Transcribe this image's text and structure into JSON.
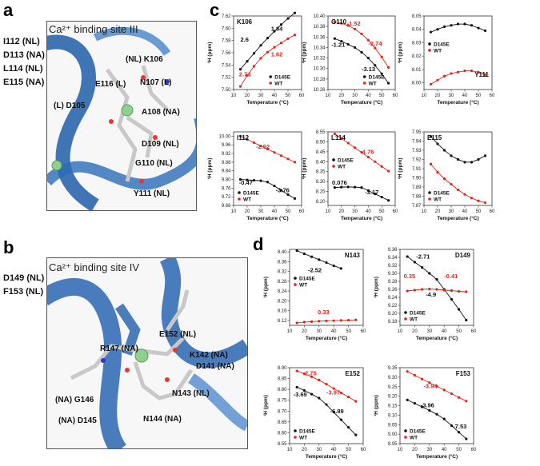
{
  "panels": {
    "a": "a",
    "b": "b",
    "c": "c",
    "d": "d"
  },
  "structures": {
    "site3": {
      "title": "Ca²⁺ binding site III",
      "side_list": [
        "I112 (NL)",
        "D113 (NA)",
        "L114 (NL)",
        "E115 (NA)"
      ],
      "residues": [
        "(NL) K106",
        "E116 (L)",
        "N107 (L)",
        "(L) D105",
        "A108 (NA)",
        "D109 (NL)",
        "G110 (NL)",
        "Y111 (NL)"
      ]
    },
    "site4": {
      "title": "Ca²⁺ binding site IV",
      "side_list": [
        "D149 (NL)",
        "F153 (NL)"
      ],
      "residues": [
        "E152 (NL)",
        "R147 (NA)",
        "K142 (NA)",
        "D141 (NA)",
        "N143 (NL)",
        "(NA) G146",
        "(NA) D145",
        "N144 (NA)"
      ]
    }
  },
  "common": {
    "xlabel": "Temperature (°C)",
    "ylabel": "¹H (ppm)",
    "legend": [
      "D145E",
      "WT"
    ],
    "colors": {
      "D145E": "#111111",
      "WT": "#e0241b"
    }
  },
  "chart_data": [
    {
      "type": "scatter",
      "title": "K106",
      "xlim": [
        10,
        60
      ],
      "ylim": [
        7.5,
        7.62
      ],
      "yticks": [
        7.5,
        7.52,
        7.54,
        7.56,
        7.58,
        7.6,
        7.62
      ],
      "series": [
        {
          "name": "D145E",
          "x": [
            15,
            20,
            25,
            30,
            35,
            40,
            45,
            50,
            55
          ],
          "y": [
            7.533,
            7.546,
            7.559,
            7.572,
            7.584,
            7.595,
            7.606,
            7.616,
            7.625
          ]
        },
        {
          "name": "WT",
          "x": [
            15,
            20,
            25,
            30,
            35,
            40,
            45,
            50,
            55
          ],
          "y": [
            7.505,
            7.523,
            7.538,
            7.551,
            7.561,
            7.569,
            7.576,
            7.583,
            7.589
          ]
        }
      ],
      "annotations": [
        {
          "text": "2.6",
          "series": "D145E"
        },
        {
          "text": "1.84",
          "series": "D145E"
        },
        {
          "text": "2.74",
          "series": "WT"
        },
        {
          "text": "1.62",
          "series": "WT"
        }
      ],
      "legend_pos": "bottom-right"
    },
    {
      "type": "scatter",
      "title": "G110",
      "xlim": [
        10,
        60
      ],
      "ylim": [
        10.26,
        10.4
      ],
      "yticks": [
        10.26,
        10.28,
        10.3,
        10.32,
        10.34,
        10.36,
        10.38,
        10.4
      ],
      "series": [
        {
          "name": "D145E",
          "x": [
            15,
            20,
            25,
            30,
            35,
            40,
            45,
            50,
            55
          ],
          "y": [
            10.357,
            10.352,
            10.346,
            10.34,
            10.331,
            10.32,
            10.306,
            10.29,
            10.272
          ]
        },
        {
          "name": "WT",
          "x": [
            15,
            20,
            25,
            30,
            35,
            40,
            45,
            50,
            55
          ],
          "y": [
            10.389,
            10.386,
            10.382,
            10.375,
            10.366,
            10.354,
            10.339,
            10.322,
            10.302
          ]
        }
      ],
      "annotations": [
        {
          "text": "-1.52",
          "series": "WT"
        },
        {
          "text": "-2.74",
          "series": "WT"
        },
        {
          "text": "-1.21",
          "series": "D145E"
        },
        {
          "text": "-3.13",
          "series": "D145E"
        }
      ],
      "legend_pos": "bottom-right"
    },
    {
      "type": "scatter",
      "title": "Y111",
      "xlim": [
        10,
        60
      ],
      "ylim": [
        7.995,
        8.05
      ],
      "yticks": [
        8.0,
        8.01,
        8.02,
        8.03,
        8.04,
        8.05
      ],
      "series": [
        {
          "name": "D145E",
          "x": [
            15,
            20,
            25,
            30,
            35,
            40,
            45,
            50,
            55
          ],
          "y": [
            8.038,
            8.04,
            8.042,
            8.043,
            8.044,
            8.044,
            8.043,
            8.041,
            8.039
          ]
        },
        {
          "name": "WT",
          "x": [
            15,
            20,
            25,
            30,
            35,
            40,
            45,
            50,
            55
          ],
          "y": [
            7.999,
            8.002,
            8.005,
            8.007,
            8.008,
            8.009,
            8.009,
            8.008,
            8.006
          ]
        }
      ],
      "annotations": [],
      "legend_pos": "center-left"
    },
    {
      "type": "scatter",
      "title": "I112",
      "xlim": [
        10,
        60
      ],
      "ylim": [
        9.68,
        10.02
      ],
      "yticks": [
        9.68,
        9.72,
        9.76,
        9.8,
        9.84,
        9.88,
        9.92,
        9.96,
        10.0
      ],
      "series": [
        {
          "name": "D145E",
          "x": [
            15,
            20,
            25,
            30,
            35,
            40,
            45,
            50,
            55
          ],
          "y": [
            9.8,
            9.798,
            9.796,
            9.794,
            9.788,
            9.77,
            9.75,
            9.73,
            9.712
          ]
        },
        {
          "name": "WT",
          "x": [
            15,
            20,
            25,
            30,
            35,
            40,
            45,
            50,
            55
          ],
          "y": [
            10.0,
            9.985,
            9.97,
            9.955,
            9.94,
            9.925,
            9.91,
            9.895,
            9.88
          ]
        }
      ],
      "annotations": [
        {
          "text": "-2.92",
          "series": "WT"
        },
        {
          "text": "-0.47",
          "series": "D145E"
        },
        {
          "text": "-3.76",
          "series": "D145E"
        }
      ],
      "legend_pos": "bottom-left"
    },
    {
      "type": "scatter",
      "title": "L114",
      "xlim": [
        10,
        60
      ],
      "ylim": [
        8.18,
        8.55
      ],
      "yticks": [
        8.2,
        8.25,
        8.3,
        8.35,
        8.4,
        8.45,
        8.5,
        8.55
      ],
      "series": [
        {
          "name": "D145E",
          "x": [
            15,
            20,
            25,
            30,
            35,
            40,
            45,
            50,
            55
          ],
          "y": [
            8.27,
            8.272,
            8.273,
            8.272,
            8.27,
            8.255,
            8.238,
            8.222,
            8.205
          ]
        },
        {
          "name": "WT",
          "x": [
            15,
            20,
            25,
            30,
            35,
            40,
            45,
            50,
            55
          ],
          "y": [
            8.54,
            8.517,
            8.494,
            8.47,
            8.447,
            8.423,
            8.4,
            8.376,
            8.353
          ]
        }
      ],
      "annotations": [
        {
          "text": "-4.76",
          "series": "WT"
        },
        {
          "text": "0.076",
          "series": "D145E"
        },
        {
          "text": "-3.17",
          "series": "D145E"
        }
      ],
      "legend_pos": "center-left"
    },
    {
      "type": "scatter",
      "title": "E115",
      "xlim": [
        10,
        60
      ],
      "ylim": [
        7.87,
        7.95
      ],
      "yticks": [
        7.87,
        7.88,
        7.89,
        7.9,
        7.91,
        7.92,
        7.93,
        7.94,
        7.95
      ],
      "series": [
        {
          "name": "D145E",
          "x": [
            15,
            20,
            25,
            30,
            35,
            40,
            45,
            50,
            55
          ],
          "y": [
            7.945,
            7.937,
            7.93,
            7.924,
            7.92,
            7.917,
            7.917,
            7.92,
            7.924
          ]
        },
        {
          "name": "WT",
          "x": [
            15,
            20,
            25,
            30,
            35,
            40,
            45,
            50,
            55
          ],
          "y": [
            7.915,
            7.906,
            7.899,
            7.893,
            7.887,
            7.882,
            7.878,
            7.875,
            7.873
          ]
        }
      ],
      "annotations": [],
      "legend_pos": "bottom-left"
    },
    {
      "type": "scatter",
      "title": "N143",
      "xlim": [
        10,
        60
      ],
      "ylim": [
        8.1,
        8.41
      ],
      "yticks": [
        8.12,
        8.16,
        8.2,
        8.24,
        8.28,
        8.32,
        8.36,
        8.4
      ],
      "series": [
        {
          "name": "D145E",
          "x": [
            15,
            20,
            25,
            30,
            35,
            40,
            45
          ],
          "y": [
            8.405,
            8.392,
            8.38,
            8.368,
            8.356,
            8.343,
            8.332
          ]
        },
        {
          "name": "WT",
          "x": [
            15,
            20,
            25,
            30,
            35,
            40,
            45,
            50,
            55
          ],
          "y": [
            8.11,
            8.113,
            8.115,
            8.117,
            8.118,
            8.119,
            8.12,
            8.121,
            8.122
          ]
        }
      ],
      "annotations": [
        {
          "text": "-2.52",
          "series": "D145E"
        },
        {
          "text": "0.33",
          "series": "WT"
        }
      ],
      "legend_pos": "center-left"
    },
    {
      "type": "scatter",
      "title": "D149",
      "xlim": [
        10,
        60
      ],
      "ylim": [
        9.17,
        9.36
      ],
      "yticks": [
        9.18,
        9.2,
        9.22,
        9.24,
        9.26,
        9.28,
        9.3,
        9.32,
        9.34,
        9.36
      ],
      "series": [
        {
          "name": "D145E",
          "x": [
            15,
            20,
            25,
            30,
            35,
            40,
            45,
            50,
            55
          ],
          "y": [
            9.342,
            9.328,
            9.315,
            9.3,
            9.285,
            9.26,
            9.235,
            9.21,
            9.183
          ]
        },
        {
          "name": "WT",
          "x": [
            15,
            20,
            25,
            30,
            35,
            40,
            45,
            50,
            55
          ],
          "y": [
            9.256,
            9.258,
            9.26,
            9.261,
            9.26,
            9.258,
            9.257,
            9.255,
            9.254
          ]
        }
      ],
      "annotations": [
        {
          "text": "-2.71",
          "series": "D145E"
        },
        {
          "text": "0.35",
          "series": "WT"
        },
        {
          "text": "-0.41",
          "series": "WT"
        },
        {
          "text": "-4.9",
          "series": "D145E"
        }
      ],
      "legend_pos": "bottom-left"
    },
    {
      "type": "scatter",
      "title": "E152",
      "xlim": [
        10,
        60
      ],
      "ylim": [
        8.55,
        8.9
      ],
      "yticks": [
        8.55,
        8.6,
        8.65,
        8.7,
        8.75,
        8.8,
        8.85,
        8.9
      ],
      "series": [
        {
          "name": "D145E",
          "x": [
            15,
            20,
            25,
            30,
            35,
            40,
            45,
            50,
            55
          ],
          "y": [
            8.81,
            8.795,
            8.778,
            8.76,
            8.73,
            8.695,
            8.66,
            8.625,
            8.59
          ]
        },
        {
          "name": "WT",
          "x": [
            15,
            20,
            25,
            30,
            35,
            40,
            45,
            50,
            55
          ],
          "y": [
            8.885,
            8.872,
            8.858,
            8.843,
            8.824,
            8.804,
            8.784,
            8.765,
            8.745
          ]
        }
      ],
      "annotations": [
        {
          "text": "-2.75",
          "series": "WT"
        },
        {
          "text": "-3.97",
          "series": "WT"
        },
        {
          "text": "-3.69",
          "series": "D145E"
        },
        {
          "text": "-6.89",
          "series": "D145E"
        }
      ],
      "legend_pos": "bottom-left"
    },
    {
      "type": "scatter",
      "title": "F153",
      "xlim": [
        10,
        60
      ],
      "ylim": [
        8.95,
        9.35
      ],
      "yticks": [
        8.95,
        9.0,
        9.05,
        9.1,
        9.15,
        9.2,
        9.25,
        9.3,
        9.35
      ],
      "series": [
        {
          "name": "D145E",
          "x": [
            15,
            20,
            25,
            30,
            35,
            40,
            45,
            50,
            55
          ],
          "y": [
            9.18,
            9.162,
            9.143,
            9.125,
            9.105,
            9.08,
            9.045,
            9.01,
            8.975
          ]
        },
        {
          "name": "WT",
          "x": [
            15,
            20,
            25,
            30,
            35,
            40,
            45,
            50,
            55
          ],
          "y": [
            9.33,
            9.31,
            9.29,
            9.271,
            9.252,
            9.233,
            9.213,
            9.193,
            9.174
          ]
        }
      ],
      "annotations": [
        {
          "text": "-3.94",
          "series": "WT"
        },
        {
          "text": "-3.96",
          "series": "D145E"
        },
        {
          "text": "-7.53",
          "series": "D145E"
        }
      ],
      "legend_pos": "bottom-left"
    }
  ]
}
